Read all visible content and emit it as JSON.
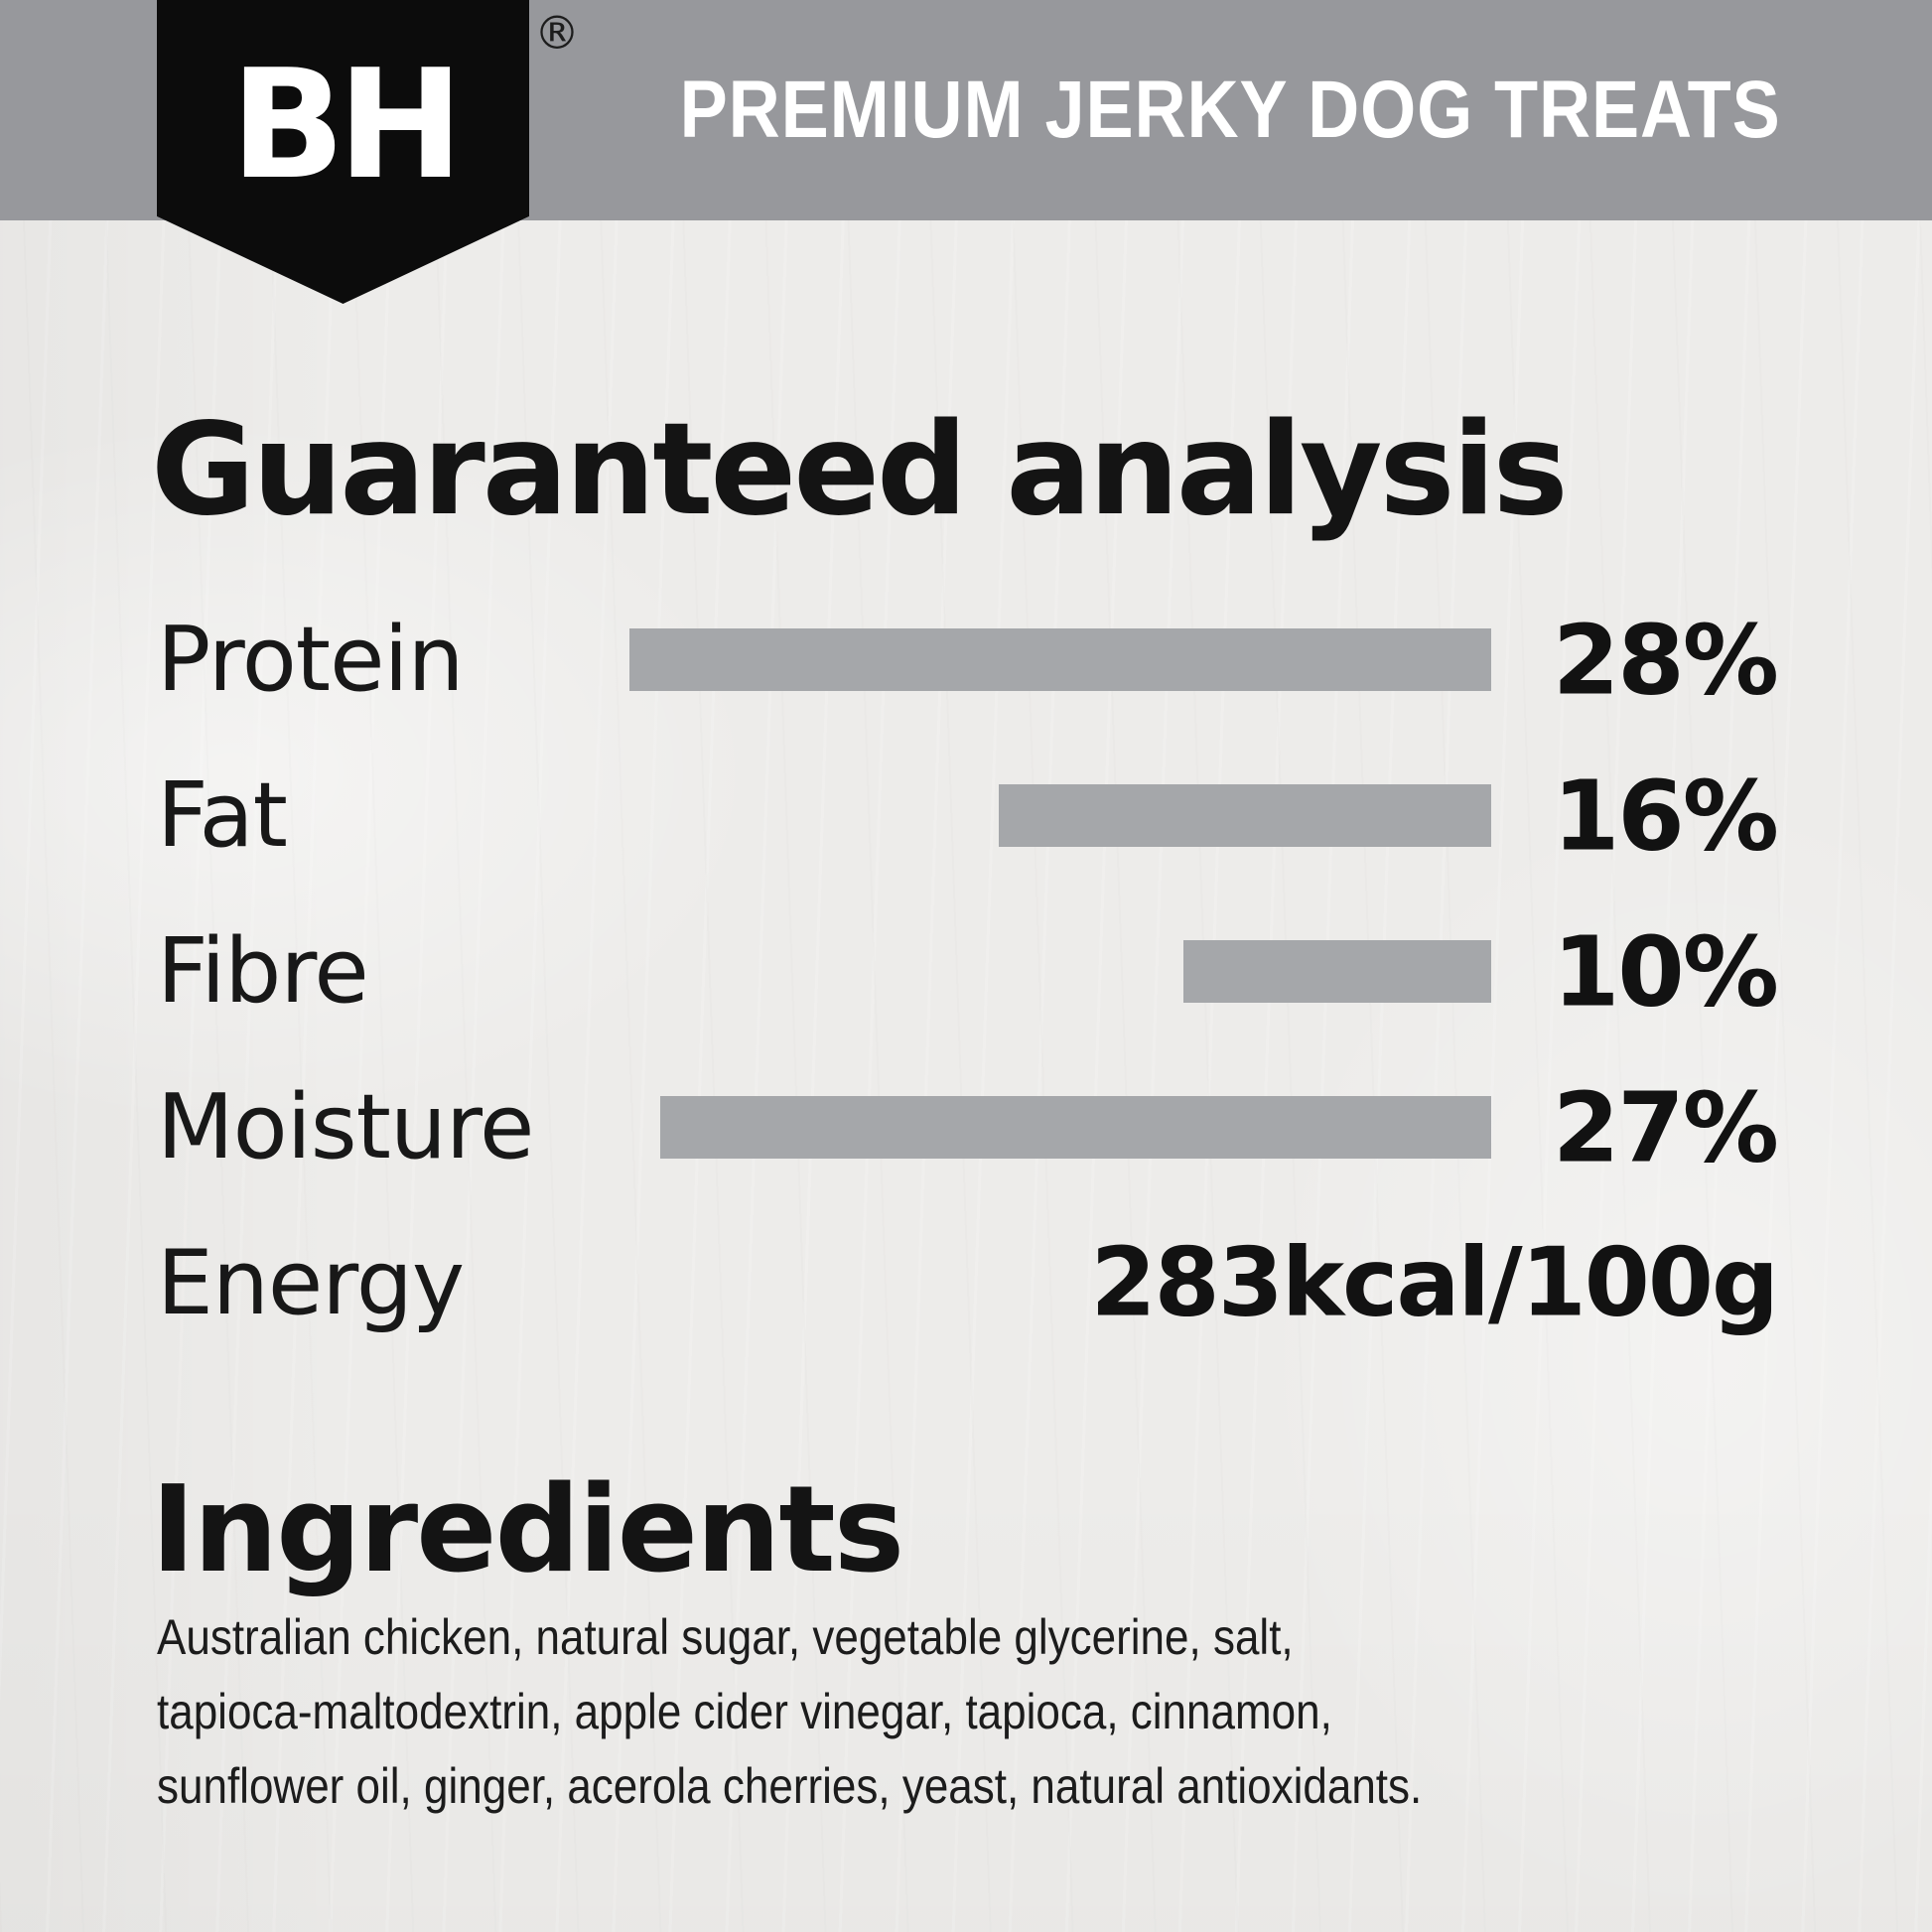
{
  "header": {
    "brand": "BH",
    "registered_mark": "®",
    "title": "PREMIUM JERKY DOG TREATS"
  },
  "analysis": {
    "title": "Guaranteed analysis",
    "rows": [
      {
        "label": "Protein",
        "value": "28%",
        "percent": 28
      },
      {
        "label": "Fat",
        "value": "16%",
        "percent": 16
      },
      {
        "label": "Fibre",
        "value": "10%",
        "percent": 10
      },
      {
        "label": "Moisture",
        "value": "27%",
        "percent": 27
      },
      {
        "label": "Energy",
        "value": "283kcal/100g",
        "percent": null
      }
    ]
  },
  "ingredients": {
    "title": "Ingredients",
    "lines": [
      "Australian chicken, natural sugar, vegetable glycerine, salt,",
      "tapioca-maltodextrin, apple cider vinegar, tapioca, cinnamon,",
      "sunflower oil, ginger, acerola cherries, yeast, natural antioxidants."
    ]
  },
  "colors": {
    "header_bar": "#97989c",
    "shield": "#0c0c0c",
    "bar_fill": "#a5a7aa",
    "background": "#edecea",
    "text": "#161616",
    "title_text": "#ffffff"
  },
  "chart_data": {
    "type": "bar",
    "title": "Guaranteed analysis",
    "categories": [
      "Protein",
      "Fat",
      "Fibre",
      "Moisture"
    ],
    "values": [
      28,
      16,
      10,
      27
    ],
    "value_labels": [
      "28%",
      "16%",
      "10%",
      "27%"
    ],
    "extra_rows": [
      {
        "label": "Energy",
        "value": "283kcal/100g"
      }
    ],
    "orientation": "horizontal",
    "xlim": [
      0,
      28
    ],
    "grid": false,
    "legend": false,
    "bars_anchored": "right"
  }
}
